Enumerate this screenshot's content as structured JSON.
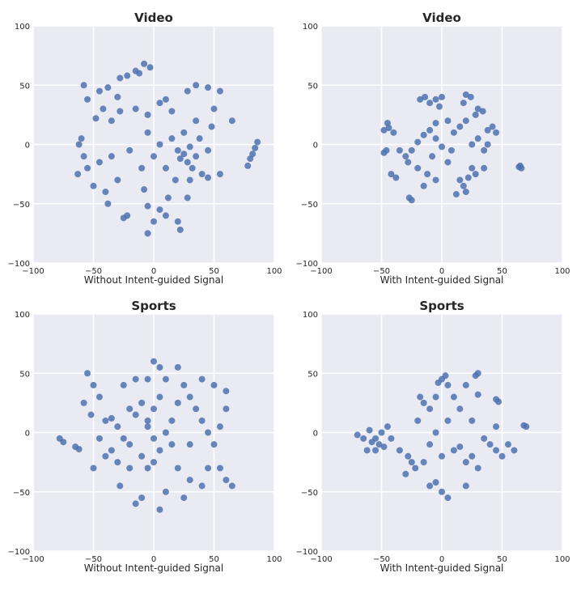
{
  "chart_data": [
    {
      "type": "scatter",
      "title": "Video",
      "xlabel": "Without Intent-guided Signal",
      "xlim": [
        -100,
        100
      ],
      "ylim": [
        -100,
        100
      ],
      "xticks": [
        "−100",
        "−50",
        "0",
        "50",
        "100"
      ],
      "yticks": [
        "−100",
        "−50",
        "0",
        "50",
        "100"
      ],
      "grid": true,
      "color": "#4c72b0",
      "points": [
        [
          -22,
          58
        ],
        [
          -15,
          62
        ],
        [
          -8,
          68
        ],
        [
          -3,
          65
        ],
        [
          -28,
          56
        ],
        [
          -12,
          60
        ],
        [
          -45,
          45
        ],
        [
          -38,
          48
        ],
        [
          -30,
          40
        ],
        [
          -42,
          30
        ],
        [
          -48,
          22
        ],
        [
          -35,
          20
        ],
        [
          -28,
          28
        ],
        [
          -55,
          38
        ],
        [
          -58,
          50
        ],
        [
          -62,
          0
        ],
        [
          -58,
          -10
        ],
        [
          -63,
          -25
        ],
        [
          -55,
          -20
        ],
        [
          -60,
          5
        ],
        [
          -50,
          -35
        ],
        [
          -45,
          -15
        ],
        [
          -40,
          -40
        ],
        [
          -35,
          -10
        ],
        [
          -38,
          -50
        ],
        [
          -30,
          -30
        ],
        [
          -25,
          -62
        ],
        [
          -22,
          -60
        ],
        [
          -20,
          -5
        ],
        [
          -10,
          -20
        ],
        [
          -8,
          -38
        ],
        [
          -5,
          10
        ],
        [
          0,
          -10
        ],
        [
          5,
          35
        ],
        [
          -15,
          30
        ],
        [
          10,
          38
        ],
        [
          15,
          28
        ],
        [
          -5,
          25
        ],
        [
          5,
          0
        ],
        [
          10,
          -20
        ],
        [
          15,
          5
        ],
        [
          20,
          -5
        ],
        [
          22,
          -12
        ],
        [
          25,
          -8
        ],
        [
          28,
          -15
        ],
        [
          30,
          -2
        ],
        [
          32,
          -20
        ],
        [
          35,
          -10
        ],
        [
          38,
          5
        ],
        [
          25,
          10
        ],
        [
          18,
          -30
        ],
        [
          30,
          -30
        ],
        [
          40,
          -25
        ],
        [
          45,
          -5
        ],
        [
          48,
          15
        ],
        [
          35,
          20
        ],
        [
          28,
          45
        ],
        [
          35,
          50
        ],
        [
          45,
          48
        ],
        [
          55,
          45
        ],
        [
          50,
          30
        ],
        [
          65,
          20
        ],
        [
          55,
          -25
        ],
        [
          45,
          -28
        ],
        [
          5,
          -55
        ],
        [
          10,
          -60
        ],
        [
          20,
          -65
        ],
        [
          22,
          -72
        ],
        [
          0,
          -65
        ],
        [
          -5,
          -75
        ],
        [
          28,
          -45
        ],
        [
          78,
          -18
        ],
        [
          80,
          -12
        ],
        [
          82,
          -8
        ],
        [
          84,
          -3
        ],
        [
          86,
          2
        ],
        [
          -5,
          -52
        ],
        [
          12,
          -45
        ]
      ]
    },
    {
      "type": "scatter",
      "title": "Video",
      "xlabel": "With Intent-guided Signal",
      "xlim": [
        -100,
        100
      ],
      "ylim": [
        -100,
        100
      ],
      "xticks": [
        "−100",
        "−50",
        "0",
        "50",
        "100"
      ],
      "yticks": [
        "−100",
        "−50",
        "0",
        "50",
        "100"
      ],
      "grid": true,
      "color": "#4c72b0",
      "points": [
        [
          -48,
          12
        ],
        [
          -44,
          14
        ],
        [
          -40,
          10
        ],
        [
          -45,
          18
        ],
        [
          -48,
          -7
        ],
        [
          -46,
          -5
        ],
        [
          -42,
          -25
        ],
        [
          -38,
          -28
        ],
        [
          -27,
          -45
        ],
        [
          -25,
          -47
        ],
        [
          -18,
          38
        ],
        [
          -14,
          40
        ],
        [
          -10,
          35
        ],
        [
          -5,
          38
        ],
        [
          0,
          40
        ],
        [
          -2,
          32
        ],
        [
          20,
          42
        ],
        [
          24,
          40
        ],
        [
          18,
          35
        ],
        [
          30,
          30
        ],
        [
          28,
          25
        ],
        [
          34,
          28
        ],
        [
          -20,
          2
        ],
        [
          -25,
          -5
        ],
        [
          -15,
          8
        ],
        [
          -10,
          12
        ],
        [
          -5,
          5
        ],
        [
          0,
          -2
        ],
        [
          -8,
          -10
        ],
        [
          -30,
          -10
        ],
        [
          -35,
          -5
        ],
        [
          -20,
          -20
        ],
        [
          -12,
          -25
        ],
        [
          -5,
          -30
        ],
        [
          -15,
          -35
        ],
        [
          5,
          -15
        ],
        [
          10,
          10
        ],
        [
          15,
          15
        ],
        [
          5,
          20
        ],
        [
          -5,
          18
        ],
        [
          15,
          -30
        ],
        [
          18,
          -35
        ],
        [
          22,
          -28
        ],
        [
          25,
          -20
        ],
        [
          28,
          -25
        ],
        [
          20,
          -40
        ],
        [
          12,
          -42
        ],
        [
          38,
          12
        ],
        [
          42,
          15
        ],
        [
          45,
          10
        ],
        [
          35,
          -5
        ],
        [
          38,
          0
        ],
        [
          30,
          5
        ],
        [
          25,
          0
        ],
        [
          65,
          -18
        ],
        [
          66,
          -20
        ],
        [
          64,
          -19
        ],
        [
          35,
          -20
        ],
        [
          20,
          20
        ],
        [
          -28,
          -15
        ],
        [
          8,
          -5
        ]
      ]
    },
    {
      "type": "scatter",
      "title": "Sports",
      "xlabel": "Without Intent-guided Signal",
      "xlim": [
        -100,
        100
      ],
      "ylim": [
        -100,
        100
      ],
      "xticks": [
        "−100",
        "−50",
        "0",
        "50",
        "100"
      ],
      "yticks": [
        "−100",
        "−50",
        "0",
        "50",
        "100"
      ],
      "grid": true,
      "color": "#4c72b0",
      "points": [
        [
          -78,
          -5
        ],
        [
          -75,
          -8
        ],
        [
          -65,
          -12
        ],
        [
          -62,
          -14
        ],
        [
          -50,
          -30
        ],
        [
          -55,
          50
        ],
        [
          -50,
          40
        ],
        [
          -45,
          30
        ],
        [
          -58,
          25
        ],
        [
          -52,
          15
        ],
        [
          -40,
          10
        ],
        [
          -35,
          12
        ],
        [
          -30,
          5
        ],
        [
          -25,
          -5
        ],
        [
          -20,
          -10
        ],
        [
          -35,
          -15
        ],
        [
          -30,
          -25
        ],
        [
          -28,
          -45
        ],
        [
          -40,
          -20
        ],
        [
          -45,
          -5
        ],
        [
          -15,
          -60
        ],
        [
          -10,
          -55
        ],
        [
          -20,
          20
        ],
        [
          -15,
          15
        ],
        [
          -10,
          25
        ],
        [
          -5,
          10
        ],
        [
          0,
          20
        ],
        [
          5,
          30
        ],
        [
          -5,
          45
        ],
        [
          0,
          60
        ],
        [
          5,
          55
        ],
        [
          10,
          45
        ],
        [
          -15,
          45
        ],
        [
          -25,
          40
        ],
        [
          -10,
          -20
        ],
        [
          0,
          -25
        ],
        [
          -5,
          -30
        ],
        [
          5,
          -15
        ],
        [
          10,
          0
        ],
        [
          15,
          10
        ],
        [
          20,
          25
        ],
        [
          25,
          40
        ],
        [
          30,
          30
        ],
        [
          35,
          20
        ],
        [
          40,
          10
        ],
        [
          45,
          0
        ],
        [
          50,
          -10
        ],
        [
          55,
          5
        ],
        [
          60,
          20
        ],
        [
          60,
          35
        ],
        [
          50,
          40
        ],
        [
          40,
          45
        ],
        [
          20,
          -30
        ],
        [
          30,
          -40
        ],
        [
          40,
          -45
        ],
        [
          25,
          -55
        ],
        [
          10,
          -50
        ],
        [
          45,
          -30
        ],
        [
          55,
          -30
        ],
        [
          60,
          -40
        ],
        [
          65,
          -45
        ],
        [
          0,
          -5
        ],
        [
          -5,
          5
        ],
        [
          -20,
          -30
        ],
        [
          15,
          -10
        ],
        [
          30,
          -10
        ],
        [
          5,
          -65
        ],
        [
          20,
          55
        ]
      ]
    },
    {
      "type": "scatter",
      "title": "Sports",
      "xlabel": "With Intent-guided Signal",
      "xlim": [
        -100,
        100
      ],
      "ylim": [
        -100,
        100
      ],
      "xticks": [
        "−100",
        "−50",
        "0",
        "50",
        "100"
      ],
      "yticks": [
        "−100",
        "−50",
        "0",
        "50",
        "100"
      ],
      "grid": true,
      "color": "#4c72b0",
      "points": [
        [
          -55,
          -5
        ],
        [
          -58,
          -8
        ],
        [
          -52,
          -10
        ],
        [
          -50,
          0
        ],
        [
          -60,
          2
        ],
        [
          -65,
          -5
        ],
        [
          -55,
          -15
        ],
        [
          -48,
          -12
        ],
        [
          -62,
          -15
        ],
        [
          -70,
          -2
        ],
        [
          -45,
          5
        ],
        [
          -42,
          -5
        ],
        [
          0,
          45
        ],
        [
          3,
          48
        ],
        [
          -3,
          42
        ],
        [
          5,
          40
        ],
        [
          30,
          50
        ],
        [
          28,
          48
        ],
        [
          45,
          28
        ],
        [
          47,
          26
        ],
        [
          68,
          6
        ],
        [
          70,
          5
        ],
        [
          30,
          32
        ],
        [
          -15,
          25
        ],
        [
          -10,
          20
        ],
        [
          -18,
          30
        ],
        [
          -20,
          10
        ],
        [
          -25,
          -25
        ],
        [
          -22,
          -30
        ],
        [
          -28,
          -20
        ],
        [
          -30,
          -35
        ],
        [
          10,
          -15
        ],
        [
          15,
          -12
        ],
        [
          25,
          -20
        ],
        [
          20,
          -25
        ],
        [
          45,
          -15
        ],
        [
          40,
          -10
        ],
        [
          50,
          -20
        ],
        [
          35,
          -5
        ],
        [
          45,
          5
        ],
        [
          5,
          -55
        ],
        [
          0,
          -50
        ],
        [
          -10,
          -45
        ],
        [
          -5,
          -42
        ],
        [
          20,
          -45
        ],
        [
          -5,
          0
        ],
        [
          5,
          10
        ],
        [
          15,
          20
        ],
        [
          10,
          30
        ],
        [
          25,
          10
        ],
        [
          -10,
          -10
        ],
        [
          0,
          -20
        ],
        [
          -15,
          -25
        ],
        [
          30,
          -30
        ],
        [
          -35,
          -15
        ],
        [
          55,
          -10
        ],
        [
          60,
          -15
        ],
        [
          -5,
          30
        ],
        [
          20,
          40
        ]
      ]
    }
  ]
}
